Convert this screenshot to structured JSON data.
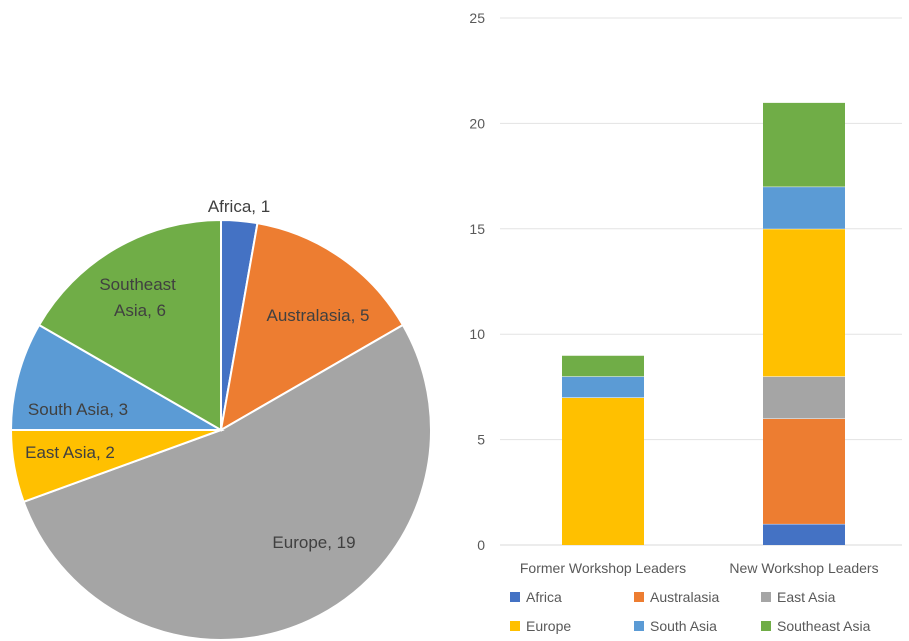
{
  "chart_data": [
    {
      "type": "pie",
      "slices": [
        {
          "label": "Africa",
          "value": 1,
          "display": "Africa, 1",
          "color": "#4472C4"
        },
        {
          "label": "Australasia",
          "value": 5,
          "display": "Australasia, 5",
          "color": "#ED7D31"
        },
        {
          "label": "Europe",
          "value": 19,
          "display": "Europe, 19",
          "color": "#A5A5A5"
        },
        {
          "label": "East Asia",
          "value": 2,
          "display": "East Asia, 2",
          "color": "#FFC000"
        },
        {
          "label": "South Asia",
          "value": 3,
          "display": "South Asia, 3",
          "color": "#5B9BD5"
        },
        {
          "label": "Southeast Asia",
          "value": 6,
          "display": "Southeast Asia, 6",
          "color": "#70AD47"
        }
      ]
    },
    {
      "type": "bar",
      "stacked": true,
      "categories": [
        "Former Workshop Leaders",
        "New Workshop Leaders"
      ],
      "ylim": [
        0,
        25
      ],
      "yticks": [
        "0",
        "5",
        "10",
        "15",
        "20",
        "25"
      ],
      "grid": true,
      "legend_position": "bottom",
      "series": [
        {
          "name": "Africa",
          "color": "#4472C4",
          "values": [
            0,
            1
          ]
        },
        {
          "name": "Australasia",
          "color": "#ED7D31",
          "values": [
            0,
            5
          ]
        },
        {
          "name": "East Asia",
          "color": "#A5A5A5",
          "values": [
            0,
            2
          ]
        },
        {
          "name": "Europe",
          "color": "#FFC000",
          "values": [
            7,
            7
          ]
        },
        {
          "name": "South Asia",
          "color": "#5B9BD5",
          "values": [
            1,
            2
          ]
        },
        {
          "name": "Southeast Asia",
          "color": "#70AD47",
          "values": [
            1,
            4
          ]
        }
      ]
    }
  ]
}
